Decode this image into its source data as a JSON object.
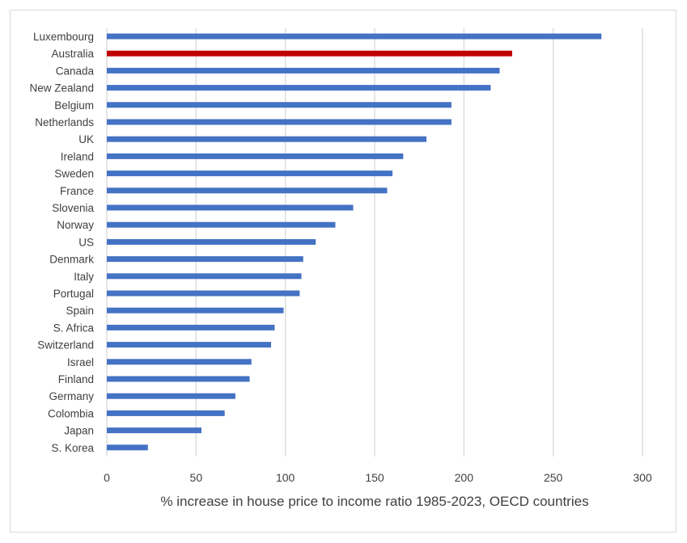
{
  "chart_data": {
    "type": "bar",
    "orientation": "horizontal",
    "title": "",
    "xlabel": "% increase in house price to income ratio 1985-2023, OECD countries",
    "ylabel": "",
    "xlim": [
      0,
      300
    ],
    "xticks": [
      "0",
      "50",
      "100",
      "150",
      "200",
      "250",
      "300"
    ],
    "grid": "vertical",
    "categories": [
      "Luxembourg",
      "Australia",
      "Canada",
      "New Zealand",
      "Belgium",
      "Netherlands",
      "UK",
      "Ireland",
      "Sweden",
      "France",
      "Slovenia",
      "Norway",
      "US",
      "Denmark",
      "Italy",
      "Portugal",
      "Spain",
      "S. Africa",
      "Switzerland",
      "Israel",
      "Finland",
      "Germany",
      "Colombia",
      "Japan",
      "S. Korea"
    ],
    "values": [
      277,
      227,
      220,
      215,
      193,
      193,
      179,
      166,
      160,
      157,
      138,
      128,
      117,
      110,
      109,
      108,
      99,
      94,
      92,
      81,
      80,
      72,
      66,
      53,
      23
    ],
    "colors": {
      "default": "#4472c4",
      "highlight": "#c00000",
      "grid": "#d9d9d9"
    },
    "highlight_category": "Australia"
  }
}
